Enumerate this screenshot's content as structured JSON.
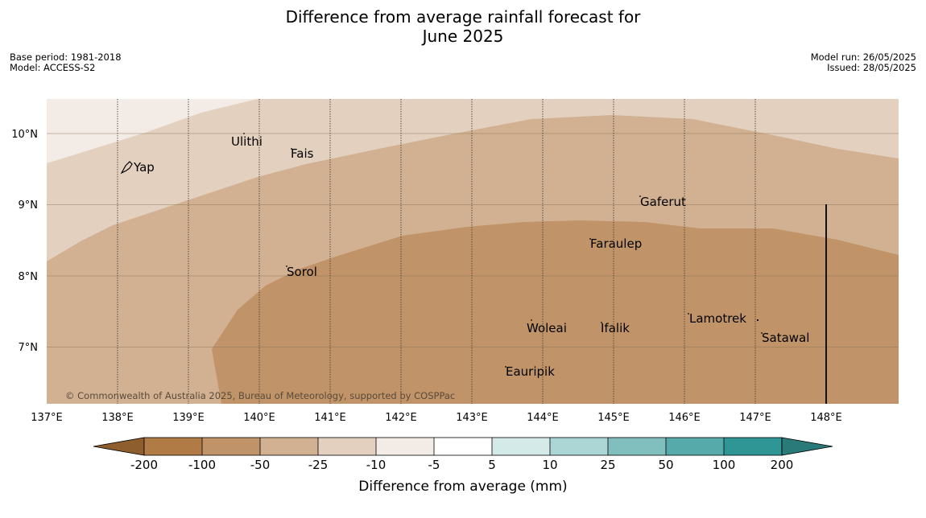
{
  "header": {
    "title_line1": "Difference from average rainfall forecast for",
    "title_line2": "June 2025",
    "base_period": "Base period: 1981-2018",
    "model": "Model: ACCESS-S2",
    "model_run": "Model run: 26/05/2025",
    "issued": "Issued: 28/05/2025"
  },
  "map": {
    "lon_labels": [
      "137°E",
      "138°E",
      "139°E",
      "140°E",
      "141°E",
      "142°E",
      "143°E",
      "144°E",
      "145°E",
      "146°E",
      "147°E",
      "148°E"
    ],
    "lat_labels": [
      "10°N",
      "9°N",
      "8°N",
      "7°N"
    ],
    "islands": [
      {
        "name": "Ulithi"
      },
      {
        "name": "Fais"
      },
      {
        "name": "Yap"
      },
      {
        "name": "Gaferut"
      },
      {
        "name": "Faraulep"
      },
      {
        "name": "Sorol"
      },
      {
        "name": "Lamotrek"
      },
      {
        "name": "Woleai"
      },
      {
        "name": "Ifalik"
      },
      {
        "name": "Satawal"
      },
      {
        "name": "Eauripik"
      }
    ],
    "copyright": "© Commonwealth of Australia 2025, Bureau of Meteorology, supported by COSPPac",
    "colors": {
      "minus100": "#c09468",
      "minus50": "#d2b192",
      "minus25": "#e3d0bf",
      "minus10": "#f3ece6"
    }
  },
  "colorbar": {
    "ticks": [
      "-200",
      "-100",
      "-50",
      "-25",
      "-10",
      "-5",
      "5",
      "10",
      "25",
      "50",
      "100",
      "200"
    ],
    "colors": [
      "#8f5e2e",
      "#b17b45",
      "#c09468",
      "#d2b192",
      "#e3d0bf",
      "#f3ece6",
      "#ffffff",
      "#d4eae9",
      "#acd6d6",
      "#81bfbf",
      "#57aaaa",
      "#309695",
      "#2a7a7a"
    ],
    "title": "Difference from average (mm)"
  }
}
